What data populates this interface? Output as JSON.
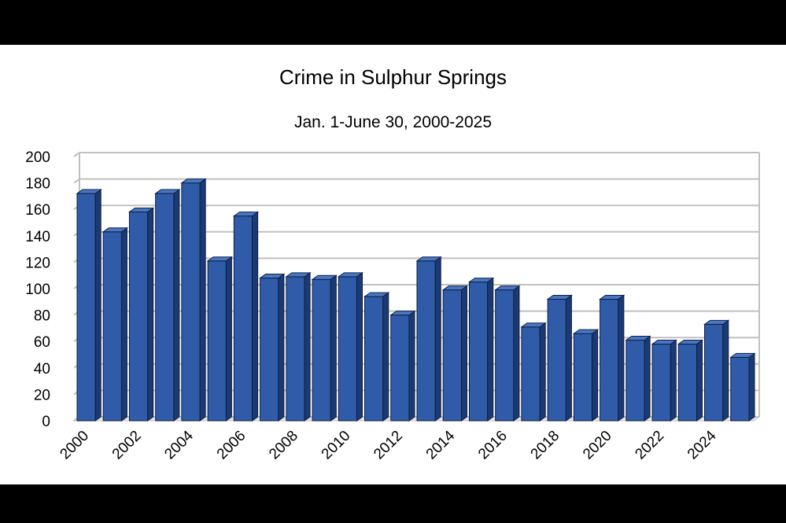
{
  "chart_data": {
    "type": "bar",
    "title": "Crime in Sulphur Springs",
    "subtitle": "Jan. 1-June 30, 2000-2025",
    "xlabel": "",
    "ylabel": "",
    "categories": [
      "2000",
      "2001",
      "2002",
      "2003",
      "2004",
      "2005",
      "2006",
      "2007",
      "2008",
      "2009",
      "2010",
      "2011",
      "2012",
      "2013",
      "2014",
      "2015",
      "2016",
      "2017",
      "2018",
      "2019",
      "2020",
      "2021",
      "2022",
      "2023",
      "2024",
      "2025"
    ],
    "x_tick_labels": [
      "2000",
      "2002",
      "2004",
      "2006",
      "2008",
      "2010",
      "2012",
      "2014",
      "2016",
      "2018",
      "2020",
      "2022",
      "2024"
    ],
    "values": [
      172,
      143,
      158,
      172,
      180,
      121,
      155,
      108,
      109,
      107,
      109,
      94,
      80,
      121,
      99,
      105,
      99,
      71,
      92,
      66,
      92,
      61,
      58,
      58,
      73,
      48
    ],
    "y_ticks": [
      0,
      20,
      40,
      60,
      80,
      100,
      120,
      140,
      160,
      180,
      200
    ],
    "ylim": [
      0,
      200
    ],
    "grid": true,
    "style": "3d-bar",
    "colors": {
      "bar": "#2f5ba8",
      "bar_side": "#1b3a73",
      "bar_top": "#4a77c4",
      "grid": "#c0c0c0"
    }
  }
}
